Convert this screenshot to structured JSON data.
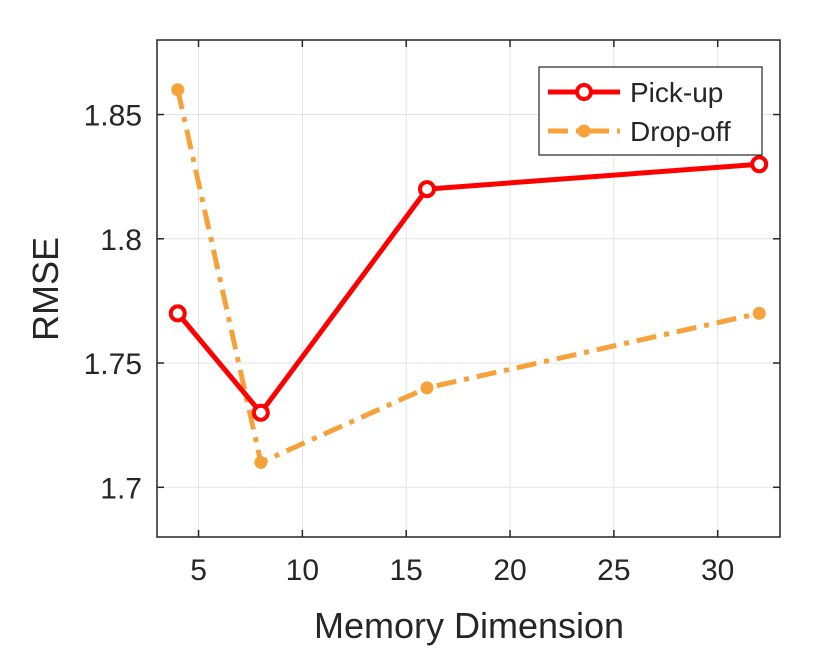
{
  "chart_data": {
    "type": "line",
    "xlabel": "Memory Dimension",
    "ylabel": "RMSE",
    "xlim": [
      3,
      33
    ],
    "ylim": [
      1.68,
      1.88
    ],
    "xticks": [
      5,
      10,
      15,
      20,
      25,
      30
    ],
    "xtick_labels": [
      "5",
      "10",
      "15",
      "20",
      "25",
      "30"
    ],
    "yticks": [
      1.7,
      1.75,
      1.8,
      1.85
    ],
    "ytick_labels": [
      "1.7",
      "1.75",
      "1.8",
      "1.85"
    ],
    "grid": true,
    "legend_position": "top-right",
    "x": [
      4,
      8,
      16,
      32
    ],
    "series": [
      {
        "name": "Pick-up",
        "values": [
          1.77,
          1.73,
          1.82,
          1.83
        ],
        "color": "#ff0000",
        "line_style": "solid",
        "marker": "open-circle"
      },
      {
        "name": "Drop-off",
        "values": [
          1.86,
          1.71,
          1.74,
          1.77
        ],
        "color": "#f7a13b",
        "line_style": "dash-dot",
        "marker": "filled-circle"
      }
    ]
  }
}
